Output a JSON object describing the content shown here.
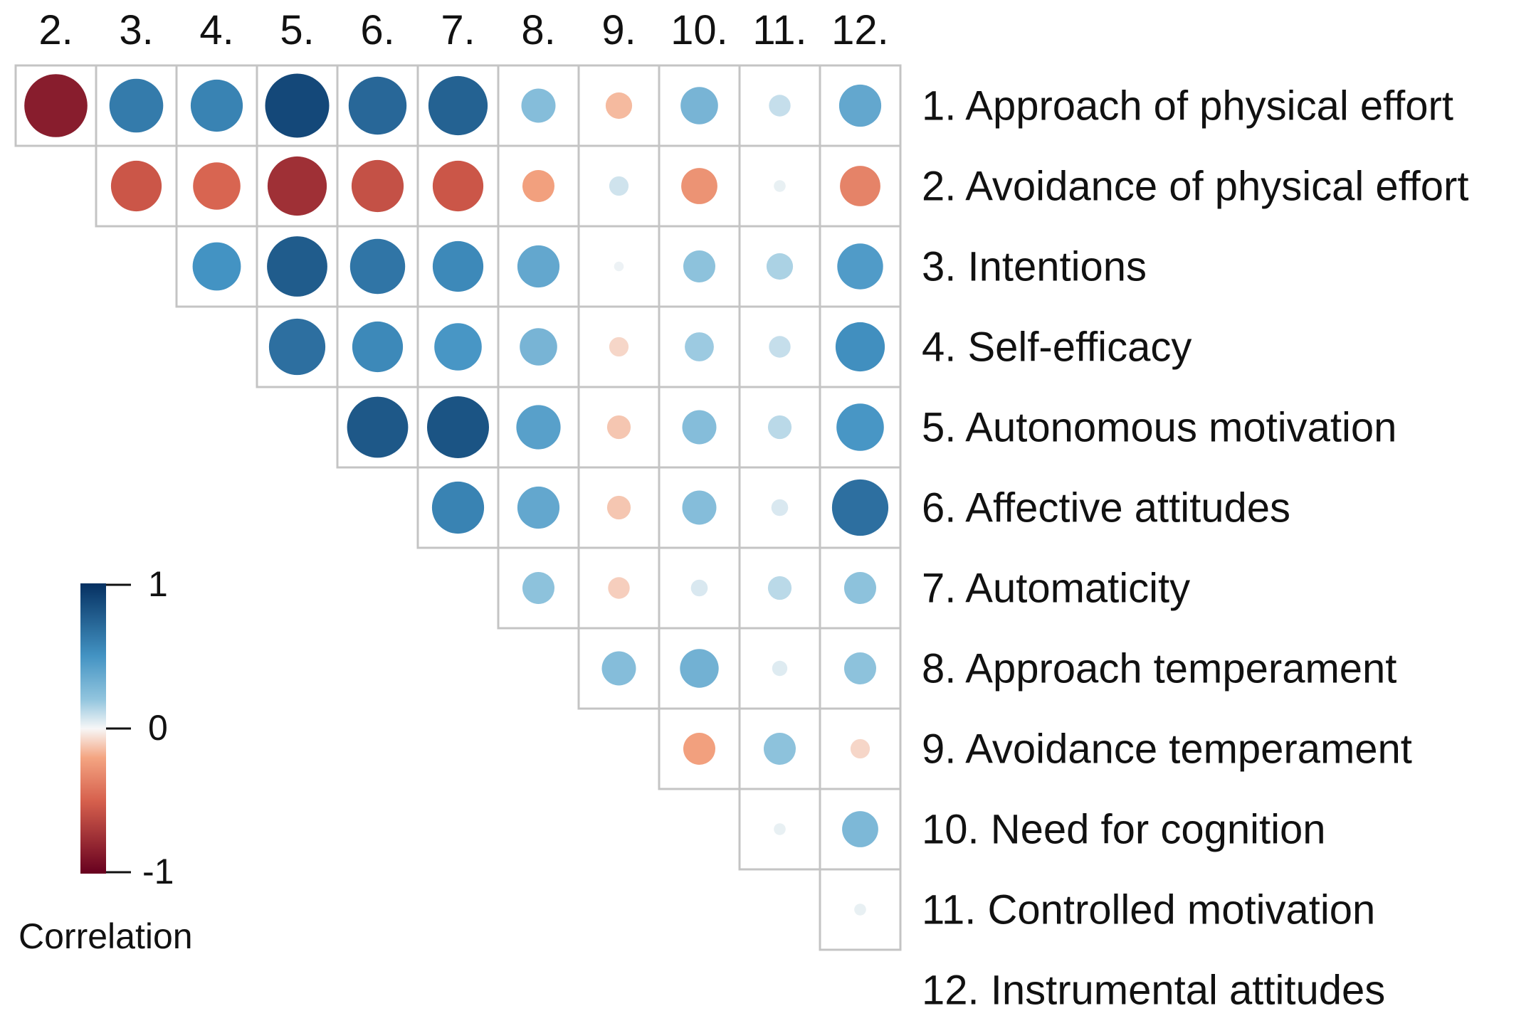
{
  "chart_data": {
    "type": "heatmap",
    "subtype": "correlation-matrix-upper-triangle-circles",
    "column_labels": [
      "2.",
      "3.",
      "4.",
      "5.",
      "6.",
      "7.",
      "8.",
      "9.",
      "10.",
      "11.",
      "12."
    ],
    "row_labels": [
      "1. Approach of physical effort",
      "2. Avoidance of physical effort",
      "3. Intentions",
      "4. Self-efficacy",
      "5. Autonomous motivation",
      "6. Affective attitudes",
      "7. Automaticity",
      "8. Approach temperament",
      "9. Avoidance temperament",
      "10. Need for cognition",
      "11. Controlled motivation",
      "12. Instrumental attitudes"
    ],
    "correlations": [
      [
        -0.85,
        0.62,
        0.58,
        0.88,
        0.72,
        0.75,
        0.25,
        -0.15,
        0.3,
        0.1,
        0.38
      ],
      [
        -0.55,
        -0.48,
        -0.75,
        -0.58,
        -0.55,
        -0.22,
        0.08,
        -0.28,
        0.03,
        -0.35
      ],
      [
        0.5,
        0.78,
        0.65,
        0.55,
        0.38,
        0.02,
        0.22,
        0.15,
        0.45
      ],
      [
        0.68,
        0.55,
        0.48,
        0.3,
        -0.08,
        0.18,
        0.1,
        0.52
      ],
      [
        0.8,
        0.82,
        0.42,
        -0.12,
        0.25,
        0.12,
        0.48
      ],
      [
        0.58,
        0.38,
        -0.12,
        0.25,
        0.06,
        0.68
      ],
      [
        0.22,
        -0.1,
        0.06,
        0.12,
        0.22
      ],
      [
        0.25,
        0.32,
        0.05,
        0.22
      ],
      [
        -0.22,
        0.22,
        -0.08
      ],
      [
        0.03,
        0.28
      ],
      [
        0.03
      ]
    ],
    "color_scale": {
      "min": -1,
      "max": 1,
      "stops": [
        {
          "value": -1,
          "color": "#67001f"
        },
        {
          "value": -0.5,
          "color": "#d6604d"
        },
        {
          "value": -0.2,
          "color": "#f4a582"
        },
        {
          "value": 0,
          "color": "#f7f7f7"
        },
        {
          "value": 0.2,
          "color": "#92c5de"
        },
        {
          "value": 0.5,
          "color": "#4393c3"
        },
        {
          "value": 1,
          "color": "#053061"
        }
      ]
    },
    "legend": {
      "title": "Correlation",
      "ticks": [
        "1",
        "0",
        "-1"
      ],
      "placement": "bottom-left"
    }
  }
}
